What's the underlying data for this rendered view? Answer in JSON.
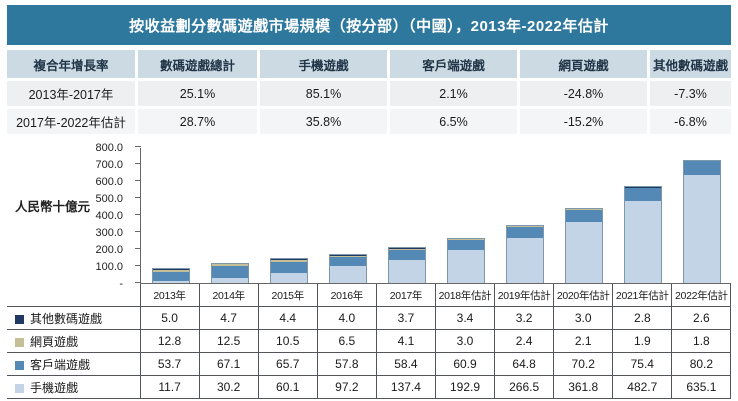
{
  "title": "按收益劃分數碼遊戲市場規模（按分部）（中國），2013年-2022年估計",
  "theme": {
    "title_bar_bg": "#2e789d",
    "title_text": "#ffffff",
    "table_header_bg": "#ccdae3",
    "row_alt1_bg": "#edeff1",
    "row_alt2_bg": "#f4f5f7",
    "axis_color": "#676767",
    "table_border": "#52565a"
  },
  "cagr_table": {
    "headers": [
      "複合年增長率",
      "數碼遊戲總計",
      "手機遊戲",
      "客戶端遊戲",
      "網頁遊戲",
      "其他數碼遊戲"
    ],
    "rows": [
      {
        "label": "2013年-2017年",
        "values": [
          "25.1%",
          "85.1%",
          "2.1%",
          "-24.8%",
          "-7.3%"
        ]
      },
      {
        "label": "2017年-2022年估計",
        "values": [
          "28.7%",
          "35.8%",
          "6.5%",
          "-15.2%",
          "-6.8%"
        ]
      }
    ]
  },
  "chart_data": {
    "type": "bar",
    "stacked": true,
    "title": "按收益劃分數碼遊戲市場規模（按分部）（中國），2013年-2022年估計",
    "ylabel": "人民幣十億元",
    "ylim": [
      0,
      800
    ],
    "ytick_step": 100,
    "yticks": [
      "800.0",
      "700.0",
      "600.0",
      "500.0",
      "400.0",
      "300.0",
      "200.0",
      "100.0",
      "-"
    ],
    "grid": false,
    "legend_position": "table-left",
    "categories": [
      "2013年",
      "2014年",
      "2015年",
      "2016年",
      "2017年",
      "2018年估計",
      "2019年估計",
      "2020年估計",
      "2021年估計",
      "2022年估計"
    ],
    "series": [
      {
        "key": "mobile-games",
        "name": "手機遊戲",
        "color": "#c3d4e6",
        "values": [
          11.7,
          30.2,
          60.1,
          97.2,
          137.4,
          192.9,
          266.5,
          361.8,
          482.7,
          635.1
        ]
      },
      {
        "key": "client-games",
        "name": "客戶端遊戲",
        "color": "#5589b5",
        "values": [
          53.7,
          67.1,
          65.7,
          57.8,
          58.4,
          60.9,
          64.8,
          70.2,
          75.4,
          80.2
        ]
      },
      {
        "key": "web-games",
        "name": "網頁遊戲",
        "color": "#c5bf97",
        "values": [
          12.8,
          12.5,
          10.5,
          6.5,
          4.1,
          3.0,
          2.4,
          2.1,
          1.9,
          1.8
        ]
      },
      {
        "key": "other-digital-games",
        "name": "其他數碼遊戲",
        "color": "#1f3864",
        "values": [
          5.0,
          4.7,
          4.4,
          4.0,
          3.7,
          3.4,
          3.2,
          3.0,
          2.8,
          2.6
        ]
      }
    ],
    "table_display_order": [
      "other-digital-games",
      "web-games",
      "client-games",
      "mobile-games"
    ]
  }
}
